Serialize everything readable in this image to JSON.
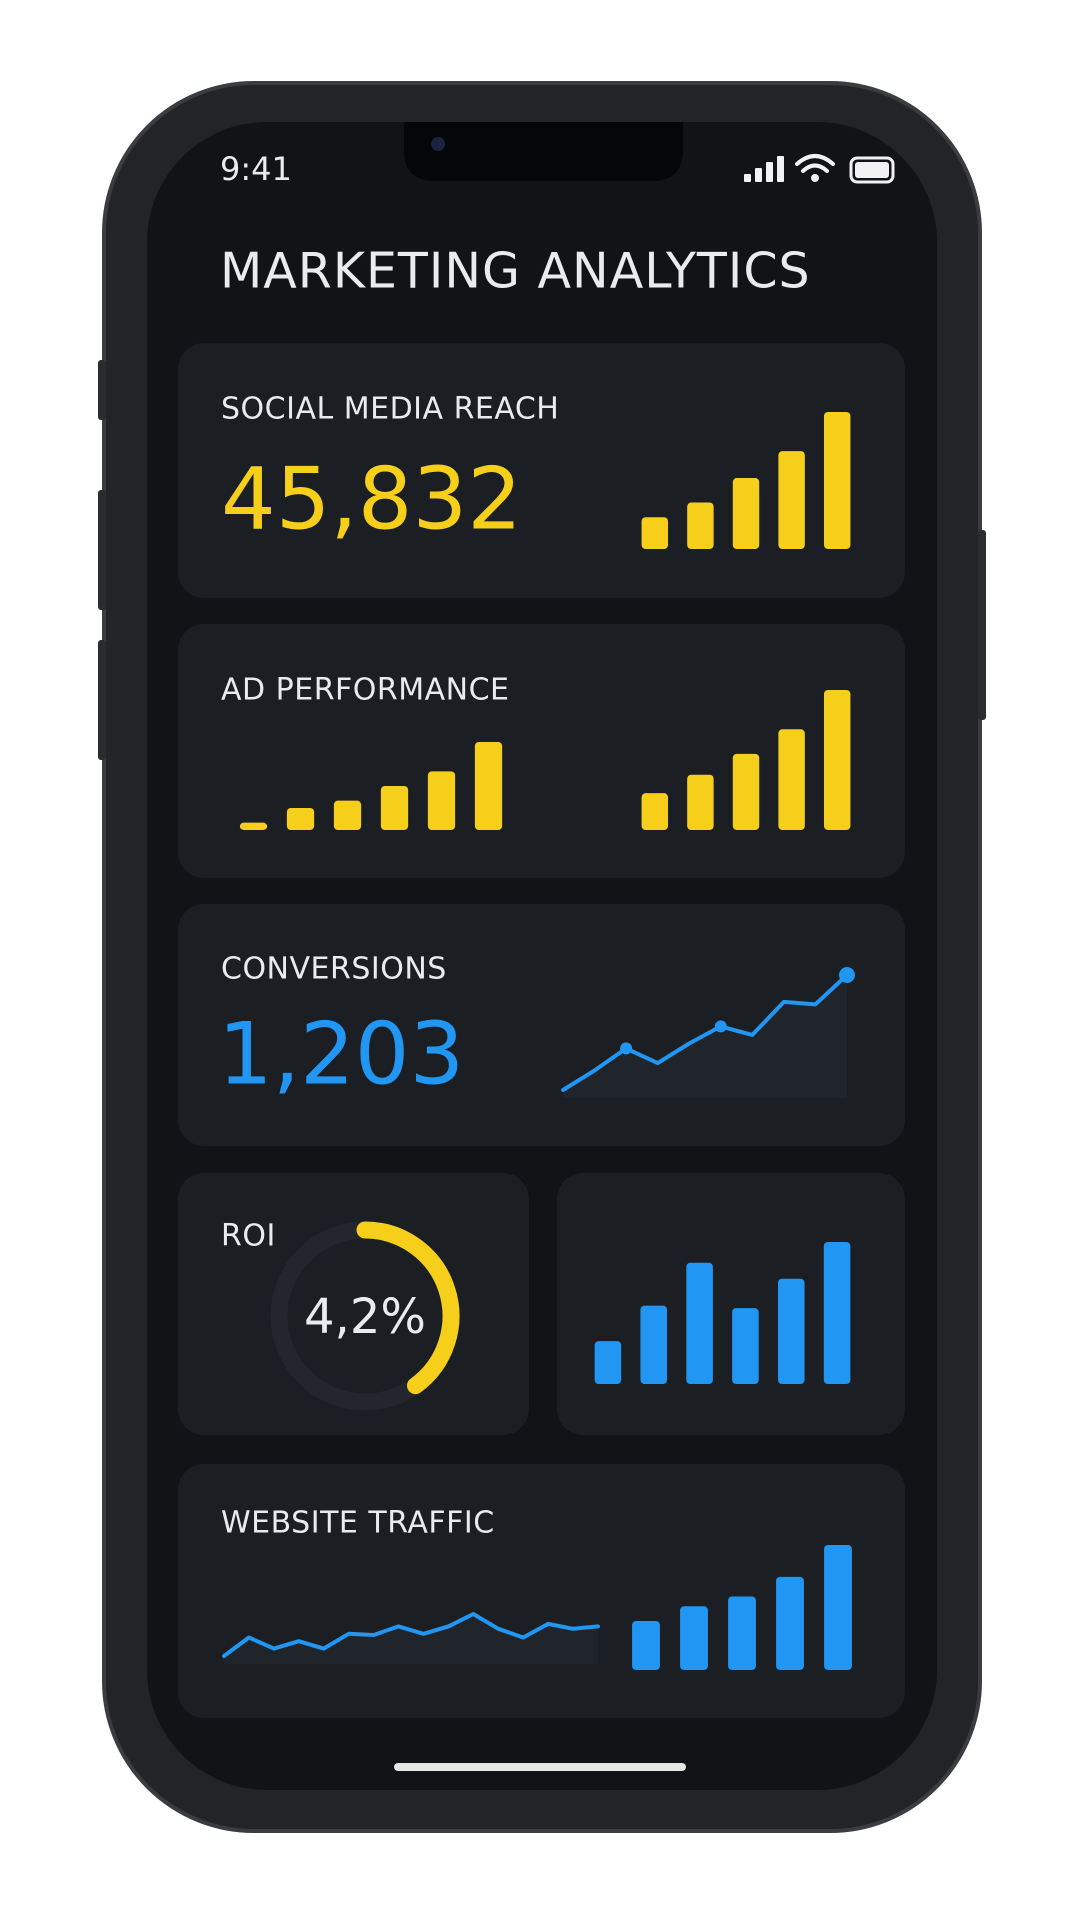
{
  "status": {
    "time": "9:41"
  },
  "title": "MARKETING ANALYTICS",
  "colors": {
    "yellow": "#f5cf1a",
    "blue": "#2196f3"
  },
  "cards": [
    {
      "label": "SOCIAL MEDIA REACH",
      "value": "45,832",
      "color": "yellow",
      "bars": [
        26,
        38,
        58,
        80,
        112
      ]
    },
    {
      "label": "AD PERFORMANCE",
      "color": "yellow",
      "bars_left": [
        6,
        18,
        24,
        36,
        48,
        72
      ],
      "bars": [
        30,
        45,
        62,
        82,
        114
      ]
    },
    {
      "label": "CONVERSIONS",
      "value": "1,203",
      "color": "blue",
      "line": [
        0,
        16,
        34,
        22,
        38,
        52,
        45,
        72,
        70,
        94
      ]
    },
    {
      "label": "ROI",
      "value": "4,2%",
      "color": "yellow",
      "gauge_fraction": 0.4
    },
    {
      "color": "blue",
      "bars": [
        35,
        64,
        99,
        62,
        86,
        116
      ]
    },
    {
      "label": "WEBSITE TRAFFIC",
      "color": "blue",
      "line": [
        8,
        23,
        14,
        20,
        14,
        26,
        25,
        32,
        26,
        32,
        42,
        30,
        23,
        34,
        30,
        32
      ],
      "bars": [
        40,
        52,
        60,
        76,
        102
      ]
    }
  ]
}
